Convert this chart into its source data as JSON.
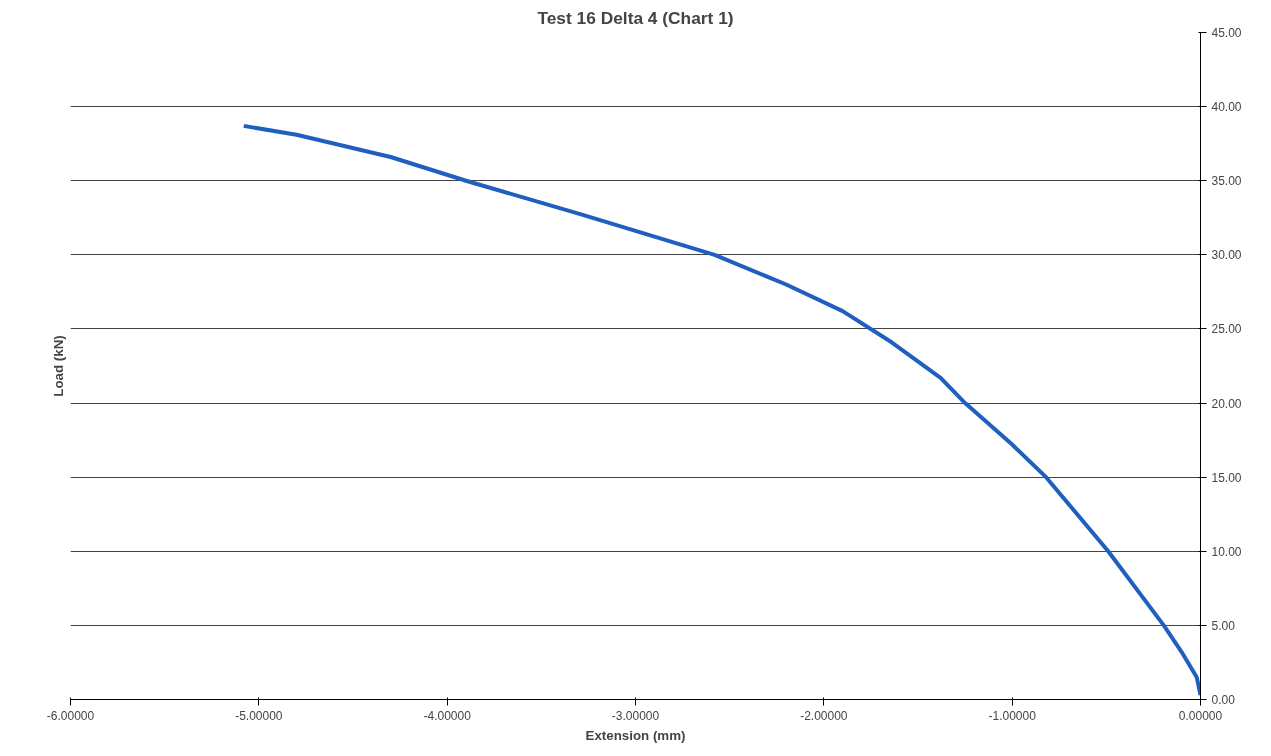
{
  "chart_data": {
    "type": "line",
    "title": "Test 16 Delta 4 (Chart 1)",
    "xlabel": "Extension (mm)",
    "ylabel": "Load (kN)",
    "x": [
      -5.08,
      -4.8,
      -4.3,
      -3.9,
      -3.28,
      -2.58,
      -2.2,
      -1.9,
      -1.64,
      -1.38,
      -1.25,
      -1.0,
      -0.82,
      -0.49,
      -0.195,
      -0.1,
      -0.02,
      0.0
    ],
    "series": [
      {
        "color": "#1f5fbf",
        "values": [
          38.7,
          38.1,
          36.6,
          35.0,
          32.7,
          30.0,
          28.0,
          26.2,
          24.1,
          21.7,
          20.0,
          17.2,
          15.0,
          10.0,
          5.0,
          3.2,
          1.5,
          0.3
        ]
      }
    ],
    "xlim": [
      -6,
      0
    ],
    "ylim": [
      0,
      45
    ],
    "xticks": [
      {
        "value": -6,
        "label": "-6.00000"
      },
      {
        "value": -5,
        "label": "-5.00000"
      },
      {
        "value": -4,
        "label": "-4.00000"
      },
      {
        "value": -3,
        "label": "-3.00000"
      },
      {
        "value": -2,
        "label": "-2.00000"
      },
      {
        "value": -1,
        "label": "-1.00000"
      },
      {
        "value": 0,
        "label": "0.00000"
      }
    ],
    "yticks": [
      {
        "value": 0,
        "label": "0.00"
      },
      {
        "value": 5,
        "label": "5.00"
      },
      {
        "value": 10,
        "label": "10.00"
      },
      {
        "value": 15,
        "label": "15.00"
      },
      {
        "value": 20,
        "label": "20.00"
      },
      {
        "value": 25,
        "label": "25.00"
      },
      {
        "value": 30,
        "label": "30.00"
      },
      {
        "value": 35,
        "label": "35.00"
      },
      {
        "value": 40,
        "label": "40.00"
      },
      {
        "value": 45,
        "label": "45.00"
      }
    ],
    "grid": "y",
    "marker": "none",
    "line_style": "solid"
  }
}
